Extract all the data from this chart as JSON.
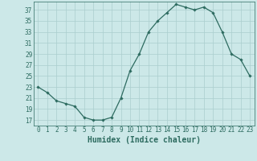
{
  "x": [
    0,
    1,
    2,
    3,
    4,
    5,
    6,
    7,
    8,
    9,
    10,
    11,
    12,
    13,
    14,
    15,
    16,
    17,
    18,
    19,
    20,
    21,
    22,
    23
  ],
  "y": [
    23,
    22,
    20.5,
    20,
    19.5,
    17.5,
    17,
    17,
    17.5,
    21,
    26,
    29,
    33,
    35,
    36.5,
    38,
    37.5,
    37,
    37.5,
    36.5,
    33,
    29,
    28,
    25
  ],
  "line_color": "#2d6b60",
  "marker": "D",
  "marker_size": 1.8,
  "bg_color": "#cce8e8",
  "grid_color": "#aacece",
  "xlabel": "Humidex (Indice chaleur)",
  "yticks": [
    17,
    19,
    21,
    23,
    25,
    27,
    29,
    31,
    33,
    35,
    37
  ],
  "xticks": [
    0,
    1,
    2,
    3,
    4,
    5,
    6,
    7,
    8,
    9,
    10,
    11,
    12,
    13,
    14,
    15,
    16,
    17,
    18,
    19,
    20,
    21,
    22,
    23
  ],
  "xlim": [
    -0.5,
    23.5
  ],
  "ylim": [
    16.0,
    38.5
  ],
  "xlabel_fontsize": 7,
  "tick_fontsize": 5.5
}
